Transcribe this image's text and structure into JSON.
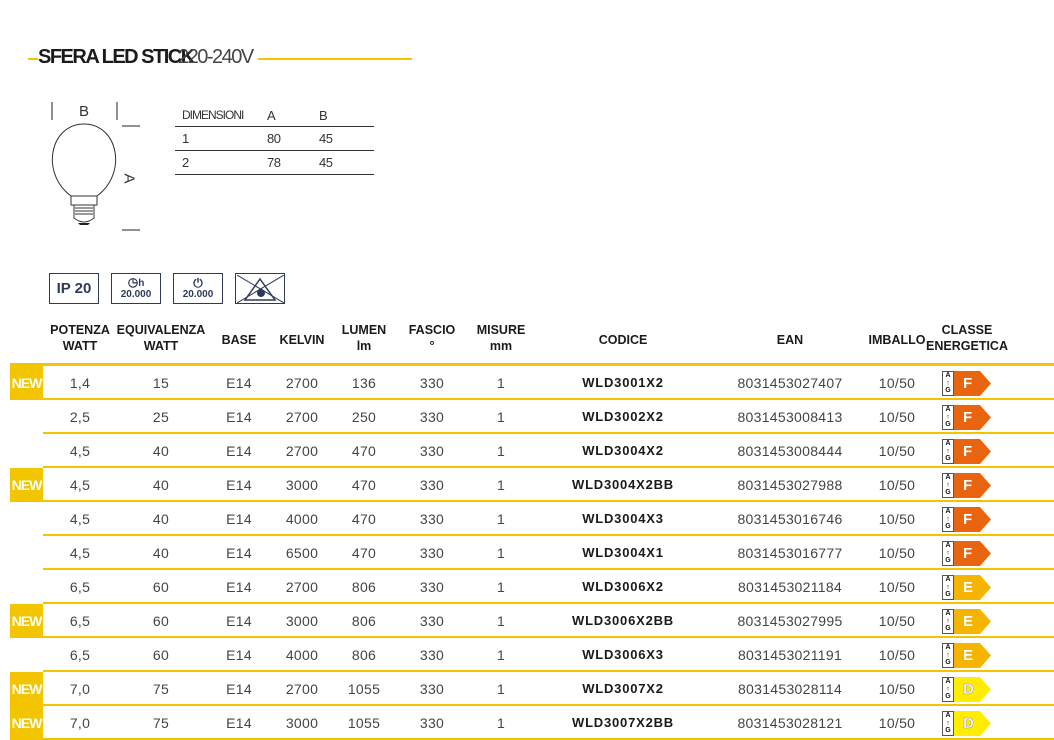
{
  "title": {
    "bold": "SFERA LED STICK",
    "light": "220-240V"
  },
  "drawing": {
    "label_b": "B",
    "label_a": "A"
  },
  "dimensions": {
    "headers": [
      "DIMENSIONI",
      "A",
      "B"
    ],
    "rows": [
      [
        "1",
        "80",
        "45"
      ],
      [
        "2",
        "78",
        "45"
      ]
    ]
  },
  "badges": {
    "ip": "IP 20",
    "hours_symbol": "h",
    "hours": "20.000",
    "cycles": "20.000",
    "icon_last": "no-direct-view-icon"
  },
  "headers": [
    "POTENZA\nWATT",
    "EQUIVALENZA\nWATT",
    "BASE",
    "KELVIN",
    "LUMEN\nlm",
    "FASCIO\n°",
    "MISURE\nmm",
    "CODICE",
    "EAN",
    "IMBALLO",
    "CLASSE\nENERGETICA"
  ],
  "new_label": "NEW",
  "energy_colors": {
    "F": "#e8640f",
    "E": "#f5b400",
    "D": "#ffec00"
  },
  "energy_scale": "A↑G",
  "rows": [
    {
      "new": true,
      "cells": [
        "1,4",
        "15",
        "E14",
        "2700",
        "136",
        "330",
        "1",
        "WLD3001X2",
        "8031453027407",
        "10/50"
      ],
      "class": "F"
    },
    {
      "new": false,
      "cells": [
        "2,5",
        "25",
        "E14",
        "2700",
        "250",
        "330",
        "1",
        "WLD3002X2",
        "8031453008413",
        "10/50"
      ],
      "class": "F"
    },
    {
      "new": false,
      "cells": [
        "4,5",
        "40",
        "E14",
        "2700",
        "470",
        "330",
        "1",
        "WLD3004X2",
        "8031453008444",
        "10/50"
      ],
      "class": "F"
    },
    {
      "new": true,
      "cells": [
        "4,5",
        "40",
        "E14",
        "3000",
        "470",
        "330",
        "1",
        "WLD3004X2BB",
        "8031453027988",
        "10/50"
      ],
      "class": "F"
    },
    {
      "new": false,
      "cells": [
        "4,5",
        "40",
        "E14",
        "4000",
        "470",
        "330",
        "1",
        "WLD3004X3",
        "8031453016746",
        "10/50"
      ],
      "class": "F"
    },
    {
      "new": false,
      "cells": [
        "4,5",
        "40",
        "E14",
        "6500",
        "470",
        "330",
        "1",
        "WLD3004X1",
        "8031453016777",
        "10/50"
      ],
      "class": "F"
    },
    {
      "new": false,
      "cells": [
        "6,5",
        "60",
        "E14",
        "2700",
        "806",
        "330",
        "1",
        "WLD3006X2",
        "8031453021184",
        "10/50"
      ],
      "class": "E"
    },
    {
      "new": true,
      "cells": [
        "6,5",
        "60",
        "E14",
        "3000",
        "806",
        "330",
        "1",
        "WLD3006X2BB",
        "8031453027995",
        "10/50"
      ],
      "class": "E"
    },
    {
      "new": false,
      "cells": [
        "6,5",
        "60",
        "E14",
        "4000",
        "806",
        "330",
        "1",
        "WLD3006X3",
        "8031453021191",
        "10/50"
      ],
      "class": "E"
    },
    {
      "new": true,
      "cells": [
        "7,0",
        "75",
        "E14",
        "2700",
        "1055",
        "330",
        "1",
        "WLD3007X2",
        "8031453028114",
        "10/50"
      ],
      "class": "D"
    },
    {
      "new": true,
      "cells": [
        "7,0",
        "75",
        "E14",
        "3000",
        "1055",
        "330",
        "1",
        "WLD3007X2BB",
        "8031453028121",
        "10/50"
      ],
      "class": "D"
    }
  ]
}
